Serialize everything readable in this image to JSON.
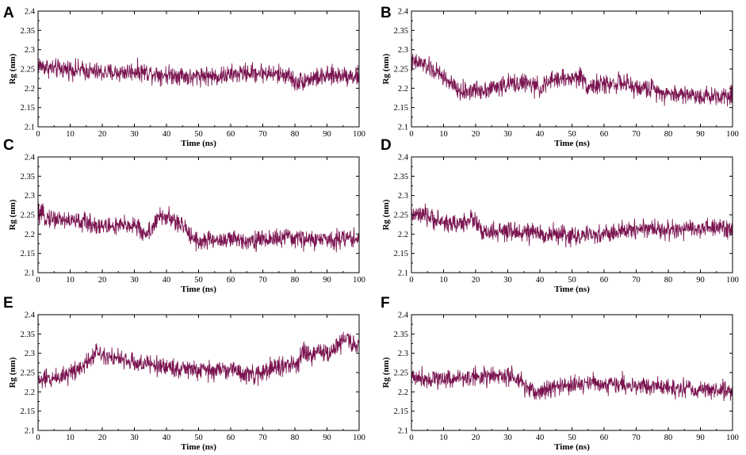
{
  "chart_data": [
    {
      "type": "line",
      "panel": "A",
      "title": "",
      "xlabel": "Time (ns)",
      "ylabel": "Rg (nm)",
      "xlim": [
        0,
        100
      ],
      "ylim": [
        2.1,
        2.4
      ],
      "xticks": [
        "0",
        "10",
        "20",
        "30",
        "40",
        "50",
        "60",
        "70",
        "80",
        "90",
        "100"
      ],
      "yticks": [
        "2.1",
        "2.15",
        "2.2",
        "2.25",
        "2.3",
        "2.35",
        "2.4"
      ],
      "series": [
        {
          "name": "Rg",
          "color": "#7a1450",
          "x": [
            0,
            5,
            10,
            15,
            20,
            25,
            30,
            35,
            40,
            45,
            48,
            50,
            55,
            60,
            65,
            70,
            75,
            78,
            80,
            85,
            90,
            95,
            100
          ],
          "values": [
            2.26,
            2.25,
            2.25,
            2.245,
            2.24,
            2.24,
            2.245,
            2.24,
            2.235,
            2.235,
            2.225,
            2.235,
            2.23,
            2.235,
            2.24,
            2.24,
            2.235,
            2.235,
            2.215,
            2.225,
            2.23,
            2.235,
            2.23
          ]
        }
      ]
    },
    {
      "type": "line",
      "panel": "B",
      "title": "",
      "xlabel": "Time (ns)",
      "ylabel": "Rg (nm)",
      "xlim": [
        0,
        100
      ],
      "ylim": [
        2.1,
        2.4
      ],
      "xticks": [
        "0",
        "10",
        "20",
        "30",
        "40",
        "50",
        "60",
        "70",
        "80",
        "90",
        "100"
      ],
      "yticks": [
        "2.1",
        "2.15",
        "2.2",
        "2.25",
        "2.3",
        "2.35",
        "2.4"
      ],
      "series": [
        {
          "name": "Rg",
          "color": "#7a1450",
          "x": [
            0,
            3,
            6,
            10,
            13,
            15,
            20,
            25,
            30,
            35,
            40,
            45,
            50,
            53,
            55,
            60,
            65,
            70,
            75,
            80,
            85,
            90,
            95,
            100
          ],
          "values": [
            2.265,
            2.265,
            2.25,
            2.23,
            2.205,
            2.19,
            2.195,
            2.2,
            2.21,
            2.215,
            2.2,
            2.225,
            2.225,
            2.23,
            2.205,
            2.21,
            2.215,
            2.2,
            2.2,
            2.185,
            2.185,
            2.18,
            2.18,
            2.185
          ]
        }
      ]
    },
    {
      "type": "line",
      "panel": "C",
      "title": "",
      "xlabel": "Time (ns)",
      "ylabel": "Rg (nm)",
      "xlim": [
        0,
        100
      ],
      "ylim": [
        2.1,
        2.4
      ],
      "xticks": [
        "0",
        "10",
        "20",
        "30",
        "40",
        "50",
        "60",
        "70",
        "80",
        "90",
        "100"
      ],
      "yticks": [
        "2.1",
        "2.15",
        "2.2",
        "2.25",
        "2.3",
        "2.35",
        "2.4"
      ],
      "series": [
        {
          "name": "Rg",
          "color": "#7a1450",
          "x": [
            0,
            5,
            10,
            15,
            20,
            25,
            30,
            33,
            35,
            38,
            40,
            43,
            46,
            48,
            50,
            55,
            60,
            65,
            70,
            75,
            80,
            85,
            90,
            95,
            100
          ],
          "values": [
            2.25,
            2.24,
            2.235,
            2.23,
            2.22,
            2.22,
            2.225,
            2.2,
            2.21,
            2.245,
            2.245,
            2.23,
            2.215,
            2.195,
            2.18,
            2.185,
            2.185,
            2.185,
            2.185,
            2.19,
            2.19,
            2.185,
            2.185,
            2.19,
            2.19
          ]
        }
      ]
    },
    {
      "type": "line",
      "panel": "D",
      "title": "",
      "xlabel": "Time (ns)",
      "ylabel": "Rg (nm)",
      "xlim": [
        0,
        100
      ],
      "ylim": [
        2.1,
        2.4
      ],
      "xticks": [
        "0",
        "10",
        "20",
        "30",
        "40",
        "50",
        "60",
        "70",
        "80",
        "90",
        "100"
      ],
      "yticks": [
        "2.1",
        "2.15",
        "2.2",
        "2.25",
        "2.3",
        "2.35",
        "2.4"
      ],
      "series": [
        {
          "name": "Rg",
          "color": "#7a1450",
          "x": [
            0,
            5,
            10,
            15,
            18,
            20,
            22,
            25,
            30,
            35,
            40,
            45,
            50,
            55,
            60,
            65,
            70,
            75,
            80,
            85,
            90,
            95,
            100
          ],
          "values": [
            2.25,
            2.245,
            2.23,
            2.225,
            2.24,
            2.235,
            2.2,
            2.205,
            2.205,
            2.205,
            2.2,
            2.2,
            2.195,
            2.195,
            2.2,
            2.205,
            2.215,
            2.215,
            2.21,
            2.21,
            2.215,
            2.215,
            2.215
          ]
        }
      ]
    },
    {
      "type": "line",
      "panel": "E",
      "title": "",
      "xlabel": "Time (ns)",
      "ylabel": "Rg (nm)",
      "xlim": [
        0,
        100
      ],
      "ylim": [
        2.1,
        2.4
      ],
      "xticks": [
        "0",
        "10",
        "20",
        "30",
        "40",
        "50",
        "60",
        "70",
        "80",
        "90",
        "100"
      ],
      "yticks": [
        "2.1",
        "2.15",
        "2.2",
        "2.25",
        "2.3",
        "2.35",
        "2.4"
      ],
      "series": [
        {
          "name": "Rg",
          "color": "#7a1450",
          "x": [
            0,
            5,
            10,
            15,
            18,
            20,
            25,
            30,
            35,
            40,
            45,
            50,
            55,
            60,
            65,
            68,
            70,
            75,
            80,
            83,
            85,
            88,
            90,
            93,
            96,
            98,
            100
          ],
          "values": [
            2.23,
            2.235,
            2.25,
            2.275,
            2.305,
            2.3,
            2.285,
            2.275,
            2.27,
            2.265,
            2.26,
            2.255,
            2.255,
            2.26,
            2.245,
            2.24,
            2.255,
            2.265,
            2.27,
            2.3,
            2.29,
            2.31,
            2.295,
            2.32,
            2.34,
            2.325,
            2.31
          ]
        }
      ]
    },
    {
      "type": "line",
      "panel": "F",
      "title": "",
      "xlabel": "Time (ns)",
      "ylabel": "Rg (nm)",
      "xlim": [
        0,
        100
      ],
      "ylim": [
        2.1,
        2.4
      ],
      "xticks": [
        "0",
        "10",
        "20",
        "30",
        "40",
        "50",
        "60",
        "70",
        "80",
        "90",
        "100"
      ],
      "yticks": [
        "2.1",
        "2.15",
        "2.2",
        "2.25",
        "2.3",
        "2.35",
        "2.4"
      ],
      "series": [
        {
          "name": "Rg",
          "color": "#7a1450",
          "x": [
            0,
            5,
            10,
            15,
            20,
            25,
            30,
            33,
            35,
            38,
            40,
            45,
            50,
            55,
            60,
            65,
            70,
            75,
            80,
            85,
            90,
            95,
            100
          ],
          "values": [
            2.24,
            2.235,
            2.235,
            2.235,
            2.24,
            2.24,
            2.24,
            2.23,
            2.215,
            2.2,
            2.2,
            2.215,
            2.215,
            2.225,
            2.22,
            2.22,
            2.215,
            2.215,
            2.21,
            2.21,
            2.205,
            2.205,
            2.2
          ]
        }
      ]
    }
  ]
}
